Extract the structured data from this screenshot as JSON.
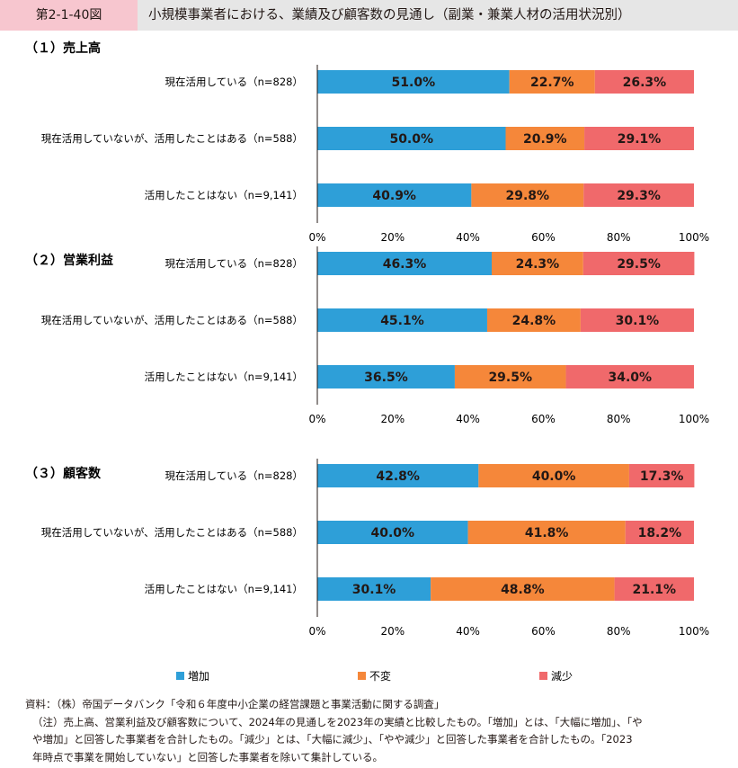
{
  "figure": {
    "number": "第2-1-40図",
    "title": "小規模事業者における、業績及び顧客数の見通し（副業・兼業人材の活用状況別）"
  },
  "chart_data": [
    {
      "type": "bar",
      "orientation": "horizontal",
      "stacked": true,
      "title": "（１）売上高",
      "categories": [
        "現在活用している（n=828）",
        "現在活用していないが、活用したことはある（n=588）",
        "活用したことはない（n=9,141）"
      ],
      "series": [
        {
          "name": "増加",
          "values": [
            51.0,
            50.0,
            40.9
          ]
        },
        {
          "name": "不変",
          "values": [
            22.7,
            20.9,
            29.8
          ]
        },
        {
          "name": "減少",
          "values": [
            26.3,
            29.1,
            29.3
          ]
        }
      ],
      "xlim": [
        0,
        100
      ],
      "xticks": [
        "0%",
        "20%",
        "40%",
        "60%",
        "80%",
        "100%"
      ]
    },
    {
      "type": "bar",
      "orientation": "horizontal",
      "stacked": true,
      "title": "（２）営業利益",
      "categories": [
        "現在活用している（n=828）",
        "現在活用していないが、活用したことはある（n=588）",
        "活用したことはない（n=9,141）"
      ],
      "series": [
        {
          "name": "増加",
          "values": [
            46.3,
            45.1,
            36.5
          ]
        },
        {
          "name": "不変",
          "values": [
            24.3,
            24.8,
            29.5
          ]
        },
        {
          "name": "減少",
          "values": [
            29.5,
            30.1,
            34.0
          ]
        }
      ],
      "xlim": [
        0,
        100
      ],
      "xticks": [
        "0%",
        "20%",
        "40%",
        "60%",
        "80%",
        "100%"
      ]
    },
    {
      "type": "bar",
      "orientation": "horizontal",
      "stacked": true,
      "title": "（３）顧客数",
      "categories": [
        "現在活用している（n=828）",
        "現在活用していないが、活用したことはある（n=588）",
        "活用したことはない（n=9,141）"
      ],
      "series": [
        {
          "name": "増加",
          "values": [
            42.8,
            40.0,
            30.1
          ]
        },
        {
          "name": "不変",
          "values": [
            40.0,
            41.8,
            48.8
          ]
        },
        {
          "name": "減少",
          "values": [
            17.3,
            18.2,
            21.1
          ]
        }
      ],
      "xlim": [
        0,
        100
      ],
      "xticks": [
        "0%",
        "20%",
        "40%",
        "60%",
        "80%",
        "100%"
      ]
    }
  ],
  "legend": {
    "placement": "bottom",
    "items": [
      {
        "name": "増加",
        "color": "#2e9fd8"
      },
      {
        "name": "不変",
        "color": "#f5873a"
      },
      {
        "name": "減少",
        "color": "#f0696b"
      }
    ]
  },
  "notes": {
    "source": "資料：（株）帝国データバンク「令和６年度中小企業の経営課題と事業活動に関する調査」",
    "note_line1": "（注）売上高、営業利益及び顧客数について、2024年の見通しを2023年の実績と比較したもの。「増加」とは、「大幅に増加」、「や",
    "note_line2": "や増加」と回答した事業者を合計したもの。「減少」とは、「大幅に減少」、「やや減少」と回答した事業者を合計したもの。「2023",
    "note_line3": "年時点で事業を開始していない」と回答した事業者を除いて集計している。"
  }
}
